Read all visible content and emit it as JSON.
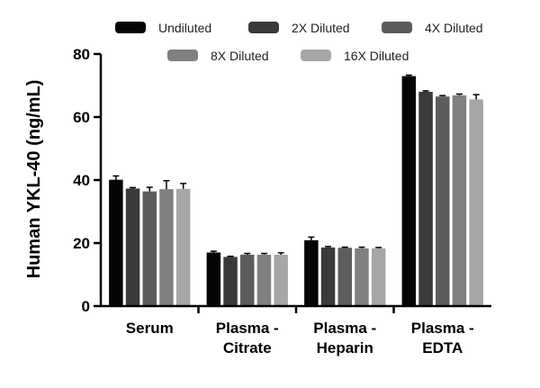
{
  "chart_data": {
    "type": "bar",
    "title": "",
    "xlabel": "",
    "ylabel": "Human YKL-40 (ng/mL)",
    "ylim": [
      0,
      80
    ],
    "yticks": [
      0,
      20,
      40,
      60,
      80
    ],
    "categories": [
      [
        "Serum"
      ],
      [
        "Plasma -",
        "Citrate"
      ],
      [
        "Plasma -",
        "Heparin"
      ],
      [
        "Plasma -",
        "EDTA"
      ]
    ],
    "series": [
      {
        "name": "Undiluted",
        "color": "#050505",
        "values": [
          40.1,
          17.0,
          20.9,
          73.0
        ],
        "errors": [
          1.2,
          0.4,
          1.0,
          0.3
        ]
      },
      {
        "name": "2X Diluted",
        "color": "#3a3a3a",
        "values": [
          37.3,
          15.6,
          18.6,
          68.0
        ],
        "errors": [
          0.3,
          0.2,
          0.3,
          0.3
        ]
      },
      {
        "name": "4X Diluted",
        "color": "#5c5c5c",
        "values": [
          36.4,
          16.3,
          18.5,
          66.5
        ],
        "errors": [
          1.3,
          0.4,
          0.2,
          0.3
        ]
      },
      {
        "name": "8X Diluted",
        "color": "#808080",
        "values": [
          37.1,
          16.3,
          18.3,
          66.9
        ],
        "errors": [
          2.7,
          0.4,
          0.4,
          0.4
        ]
      },
      {
        "name": "16X Diluted",
        "color": "#a6a6a6",
        "values": [
          37.2,
          16.3,
          18.3,
          65.6
        ],
        "errors": [
          1.7,
          0.6,
          0.3,
          1.5
        ]
      }
    ],
    "legend_position": "top"
  }
}
